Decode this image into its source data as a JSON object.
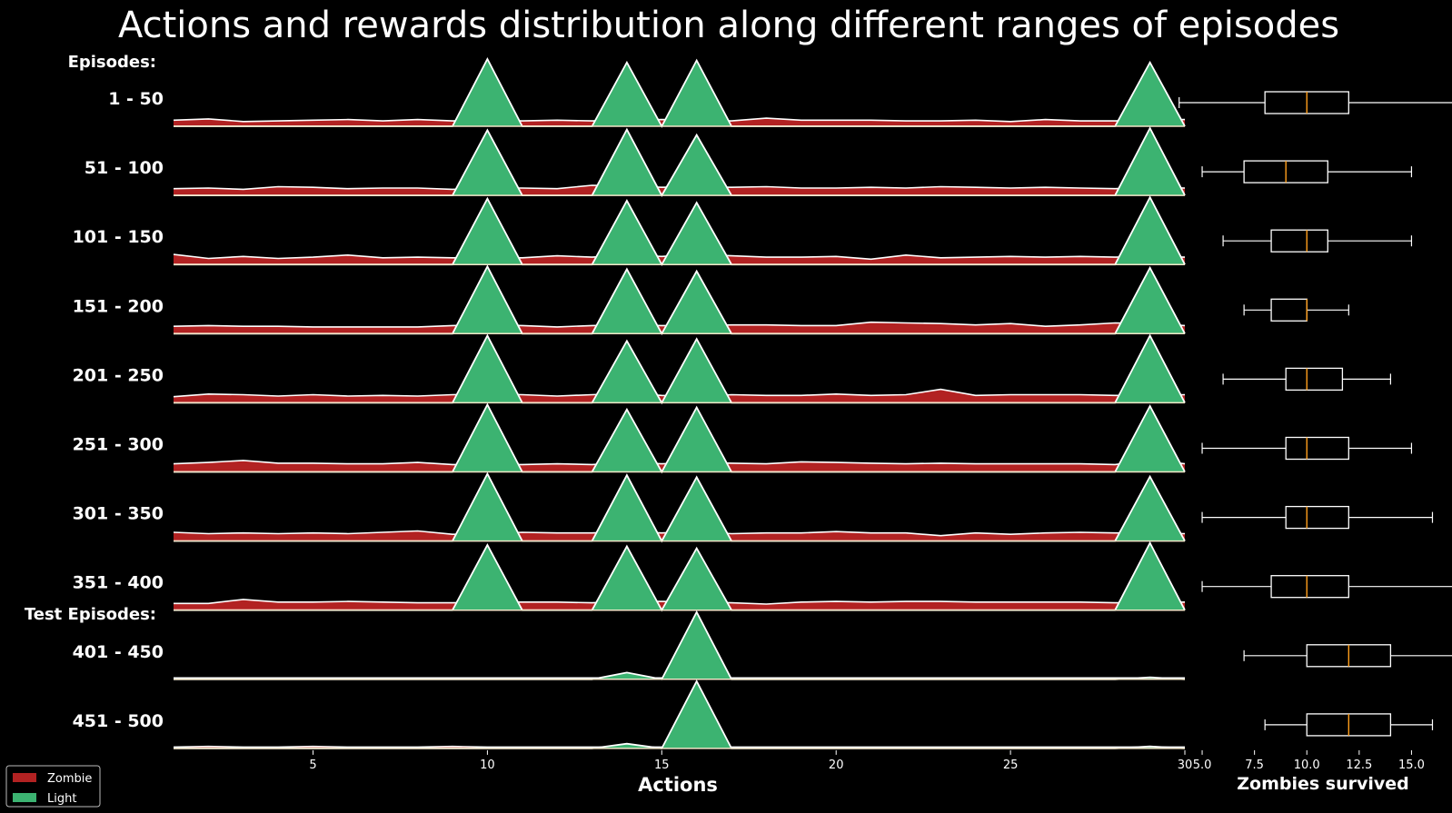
{
  "chart_data": {
    "type": "ridgeline_area_with_boxplots",
    "title": "Actions and rewards distribution along different ranges of episodes",
    "group_labels": [
      "Episodes:",
      "Test Episodes:"
    ],
    "xlabel": "Actions",
    "xlim": [
      1,
      30
    ],
    "xticks": [
      5,
      10,
      15,
      20,
      25,
      30
    ],
    "box_xlabel": "Zombies survived",
    "box_xlim": [
      4,
      16.5
    ],
    "box_xticks": [
      "5.0",
      "7.5",
      "10.0",
      "12.5",
      "15.0"
    ],
    "legend": {
      "placement": "lower-left",
      "entries": [
        {
          "name": "Zombie",
          "color": "#b22222"
        },
        {
          "name": "Light",
          "color": "#3cb371"
        }
      ]
    },
    "colors": {
      "zombie": "#b22222",
      "light": "#3cb371",
      "line": "#ffffff",
      "median": "#ff9f1c",
      "background": "#000000"
    },
    "rows": [
      {
        "label": "1 - 50",
        "group": 0,
        "zombie": [
          0.09,
          0.11,
          0.07,
          0.08,
          0.09,
          0.1,
          0.08,
          0.1,
          0.08,
          0.09,
          0.08,
          0.09,
          0.08,
          0.09,
          0.1,
          0.09,
          0.08,
          0.12,
          0.09,
          0.09,
          0.09,
          0.08,
          0.08,
          0.09,
          0.07,
          0.1,
          0.08,
          0.08,
          0.09,
          0.1
        ],
        "light": [
          0,
          0,
          0,
          0,
          0,
          0,
          0,
          0,
          0,
          1,
          0,
          0,
          0,
          0.95,
          0,
          0.98,
          0,
          0,
          0,
          0,
          0,
          0,
          0,
          0,
          0,
          0,
          0,
          0,
          0.95,
          0
        ],
        "box": {
          "whislo": 3.9,
          "q1": 8.0,
          "med": 10.0,
          "q3": 12.0,
          "whishi": 17.0
        }
      },
      {
        "label": "51 - 100",
        "group": 0,
        "zombie": [
          0.1,
          0.11,
          0.09,
          0.13,
          0.12,
          0.1,
          0.11,
          0.11,
          0.09,
          0.11,
          0.11,
          0.1,
          0.15,
          0.14,
          0.12,
          0.13,
          0.12,
          0.13,
          0.11,
          0.11,
          0.12,
          0.11,
          0.13,
          0.12,
          0.11,
          0.12,
          0.11,
          0.1,
          0.12,
          0.11
        ],
        "light": [
          0,
          0,
          0,
          0,
          0,
          0,
          0,
          0,
          0,
          0.97,
          0,
          0,
          0,
          0.98,
          0,
          0.9,
          0,
          0,
          0,
          0,
          0,
          0,
          0,
          0,
          0,
          0,
          0,
          0,
          1.0,
          0
        ],
        "box": {
          "whislo": 5.0,
          "q1": 7.0,
          "med": 9.0,
          "q3": 11.0,
          "whishi": 15.0
        }
      },
      {
        "label": "101 - 150",
        "group": 0,
        "zombie": [
          0.15,
          0.09,
          0.12,
          0.09,
          0.11,
          0.14,
          0.1,
          0.11,
          0.1,
          0.1,
          0.1,
          0.13,
          0.11,
          0.14,
          0.12,
          0.15,
          0.13,
          0.11,
          0.11,
          0.12,
          0.08,
          0.14,
          0.1,
          0.11,
          0.12,
          0.11,
          0.12,
          0.11,
          0.12,
          0.11
        ],
        "light": [
          0,
          0,
          0,
          0,
          0,
          0,
          0,
          0,
          0,
          0.98,
          0,
          0,
          0,
          0.95,
          0,
          0.92,
          0,
          0,
          0,
          0,
          0,
          0,
          0,
          0,
          0,
          0,
          0,
          0,
          1.0,
          0
        ],
        "box": {
          "whislo": 6.0,
          "q1": 8.3,
          "med": 10.0,
          "q3": 11.0,
          "whishi": 15.0
        }
      },
      {
        "label": "151 - 200",
        "group": 0,
        "zombie": [
          0.11,
          0.12,
          0.11,
          0.11,
          0.1,
          0.1,
          0.1,
          0.1,
          0.12,
          0.13,
          0.12,
          0.1,
          0.12,
          0.13,
          0.12,
          0.12,
          0.13,
          0.13,
          0.12,
          0.12,
          0.17,
          0.16,
          0.15,
          0.13,
          0.15,
          0.11,
          0.13,
          0.16,
          0.15,
          0.12
        ],
        "light": [
          0,
          0,
          0,
          0,
          0,
          0,
          0,
          0,
          0,
          1.0,
          0,
          0,
          0,
          0.96,
          0,
          0.93,
          0,
          0,
          0,
          0,
          0,
          0,
          0,
          0,
          0,
          0,
          0,
          0,
          0.98,
          0
        ],
        "box": {
          "whislo": 7.0,
          "q1": 8.3,
          "med": 10.0,
          "q3": 10.0,
          "whishi": 12.0
        }
      },
      {
        "label": "201 - 250",
        "group": 0,
        "zombie": [
          0.09,
          0.13,
          0.12,
          0.1,
          0.12,
          0.1,
          0.11,
          0.1,
          0.12,
          0.13,
          0.12,
          0.1,
          0.12,
          0.14,
          0.11,
          0.09,
          0.12,
          0.11,
          0.11,
          0.13,
          0.11,
          0.12,
          0.2,
          0.11,
          0.12,
          0.12,
          0.12,
          0.11,
          0.11,
          0.12
        ],
        "light": [
          0,
          0,
          0,
          0,
          0,
          0,
          0,
          0,
          0,
          1.0,
          0,
          0,
          0,
          0.92,
          0,
          0.95,
          0,
          0,
          0,
          0,
          0,
          0,
          0,
          0,
          0,
          0,
          0,
          0,
          1.0,
          0
        ],
        "box": {
          "whislo": 6.0,
          "q1": 9.0,
          "med": 10.0,
          "q3": 11.7,
          "whishi": 14.0
        }
      },
      {
        "label": "251 - 300",
        "group": 0,
        "zombie": [
          0.12,
          0.14,
          0.17,
          0.13,
          0.13,
          0.12,
          0.12,
          0.14,
          0.11,
          0.11,
          0.11,
          0.12,
          0.11,
          0.14,
          0.12,
          0.14,
          0.13,
          0.12,
          0.15,
          0.14,
          0.13,
          0.12,
          0.13,
          0.12,
          0.12,
          0.12,
          0.12,
          0.11,
          0.18,
          0.12
        ],
        "light": [
          0,
          0,
          0,
          0,
          0,
          0,
          0,
          0,
          0,
          1.0,
          0,
          0,
          0,
          0.93,
          0,
          0.96,
          0,
          0,
          0,
          0,
          0,
          0,
          0,
          0,
          0,
          0,
          0,
          0,
          0.98,
          0
        ],
        "box": {
          "whislo": 5.0,
          "q1": 9.0,
          "med": 10.0,
          "q3": 12.0,
          "whishi": 15.0
        }
      },
      {
        "label": "301 - 350",
        "group": 0,
        "zombie": [
          0.13,
          0.11,
          0.12,
          0.11,
          0.12,
          0.11,
          0.13,
          0.15,
          0.1,
          0.11,
          0.13,
          0.12,
          0.12,
          0.14,
          0.12,
          0.14,
          0.11,
          0.12,
          0.12,
          0.14,
          0.12,
          0.12,
          0.08,
          0.12,
          0.1,
          0.12,
          0.13,
          0.12,
          0.12,
          0.11
        ],
        "light": [
          0,
          0,
          0,
          0,
          0,
          0,
          0,
          0,
          0,
          1.0,
          0,
          0,
          0,
          0.98,
          0,
          0.95,
          0,
          0,
          0,
          0,
          0,
          0,
          0,
          0,
          0,
          0,
          0,
          0,
          0.96,
          0
        ],
        "box": {
          "whislo": 5.0,
          "q1": 9.0,
          "med": 10.0,
          "q3": 12.0,
          "whishi": 16.0
        }
      },
      {
        "label": "351 - 400",
        "group": 0,
        "zombie": [
          0.1,
          0.1,
          0.16,
          0.12,
          0.12,
          0.13,
          0.12,
          0.11,
          0.11,
          0.12,
          0.12,
          0.12,
          0.11,
          0.13,
          0.13,
          0.12,
          0.11,
          0.09,
          0.12,
          0.13,
          0.12,
          0.13,
          0.13,
          0.12,
          0.12,
          0.12,
          0.12,
          0.11,
          0.11,
          0.12
        ],
        "light": [
          0,
          0,
          0,
          0,
          0,
          0,
          0,
          0,
          0,
          0.97,
          0,
          0,
          0,
          0.95,
          0,
          0.92,
          0,
          0,
          0,
          0,
          0,
          0,
          0,
          0,
          0,
          0,
          0,
          0,
          1.0,
          0
        ],
        "box": {
          "whislo": 5.0,
          "q1": 8.3,
          "med": 10.0,
          "q3": 12.0,
          "whishi": 17.0
        }
      },
      {
        "label": "401 - 450",
        "group": 1,
        "zombie": [
          0.02,
          0.02,
          0.02,
          0.02,
          0.02,
          0.02,
          0.02,
          0.02,
          0.02,
          0.02,
          0.02,
          0.02,
          0.02,
          0.02,
          0.02,
          0.02,
          0.02,
          0.02,
          0.02,
          0.02,
          0.02,
          0.02,
          0.02,
          0.02,
          0.02,
          0.02,
          0.02,
          0.02,
          0.02,
          0.02
        ],
        "light": [
          0,
          0,
          0,
          0,
          0,
          0,
          0,
          0,
          0,
          0,
          0,
          0,
          0,
          0.1,
          0,
          1.0,
          0,
          0,
          0,
          0,
          0,
          0,
          0,
          0,
          0,
          0,
          0,
          0,
          0.03,
          0
        ],
        "box": {
          "whislo": 7.0,
          "q1": 10.0,
          "med": 12.0,
          "q3": 14.0,
          "whishi": 17.0
        }
      },
      {
        "label": "451 - 500",
        "group": 1,
        "zombie": [
          0.02,
          0.03,
          0.02,
          0.02,
          0.03,
          0.02,
          0.02,
          0.02,
          0.03,
          0.02,
          0.02,
          0.02,
          0.02,
          0.02,
          0.02,
          0.02,
          0.02,
          0.02,
          0.02,
          0.02,
          0.02,
          0.02,
          0.02,
          0.02,
          0.02,
          0.02,
          0.02,
          0.02,
          0.02,
          0.02
        ],
        "light": [
          0,
          0,
          0,
          0,
          0,
          0,
          0,
          0,
          0,
          0,
          0,
          0,
          0,
          0.07,
          0,
          1.0,
          0,
          0,
          0,
          0,
          0,
          0,
          0,
          0,
          0,
          0,
          0,
          0,
          0.03,
          0
        ],
        "box": {
          "whislo": 8.0,
          "q1": 10.0,
          "med": 12.0,
          "q3": 14.0,
          "whishi": 16.0
        }
      }
    ]
  }
}
